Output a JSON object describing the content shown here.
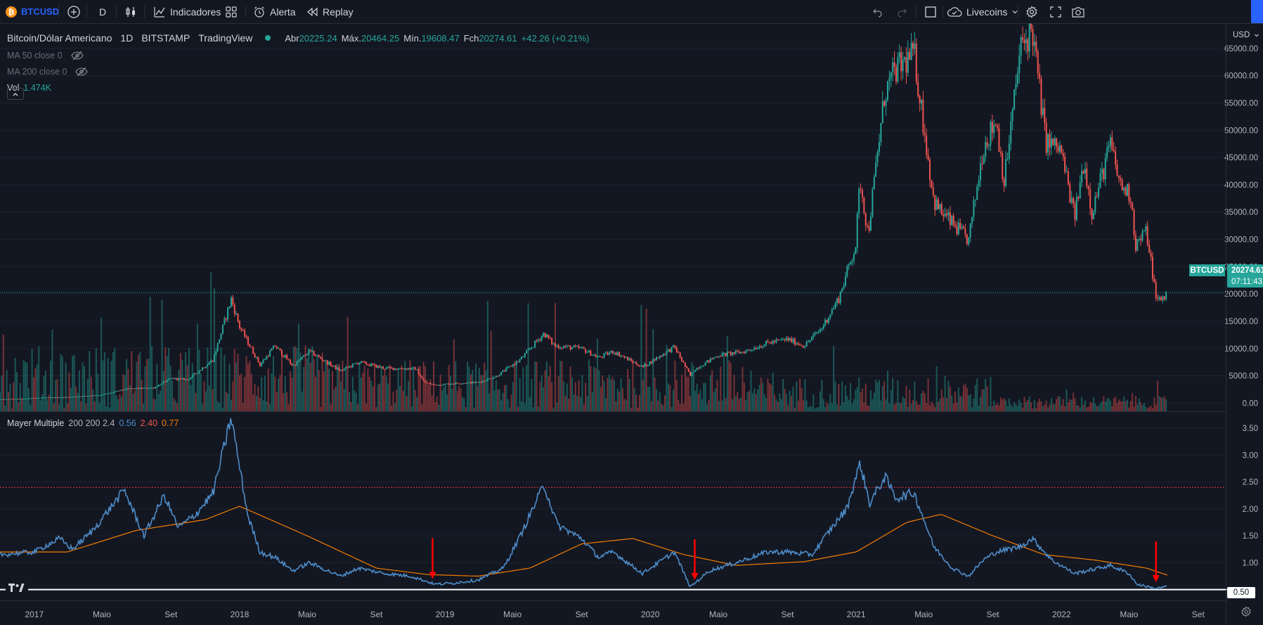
{
  "toolbar": {
    "symbol": "BTCUSD",
    "interval": "D",
    "indicators_label": "Indicadores",
    "alert_label": "Alerta",
    "replay_label": "Replay",
    "layout_name": "Livecoins",
    "symbol_icon": "bitcoin-icon",
    "add_symbol_icon": "plus-circle-icon",
    "chart_type_icon": "candles-icon",
    "indicators_icon": "indicators-icon",
    "templates_icon": "grid-icon",
    "alert_icon": "alarm-clock-icon",
    "replay_icon": "rewind-icon",
    "undo_icon": "undo-icon",
    "redo_icon": "redo-icon",
    "fullscreen_window_icon": "square-icon",
    "cloud_icon": "cloud-check-icon",
    "settings_icon": "gear-icon",
    "fullscreen_icon": "fullscreen-icon",
    "snapshot_icon": "camera-icon"
  },
  "legend": {
    "title": "Bitcoin/Dólar Americano",
    "interval": "1D",
    "exchange": "BITSTAMP",
    "source": "TradingView",
    "open_label": "Abr",
    "open": "20225.24",
    "high_label": "Máx.",
    "high": "20464.25",
    "low_label": "Mín.",
    "low": "19608.47",
    "close_label": "Fch",
    "close": "20274.61",
    "change": "+42.26 (+0.21%)",
    "ma50": "MA 50 close 0",
    "ma200": "MA 200 close 0",
    "vol_label": "Vol",
    "vol_value": "1.474K"
  },
  "price_axis": {
    "currency": "USD",
    "last_price_tag": "20274.61",
    "countdown": "07:11:43",
    "symbol_tag": "BTCUSD"
  },
  "indicator": {
    "name": "Mayer Multiple",
    "params": "200 200 2.4",
    "value_mm": "0.56",
    "value_upper": "2.40",
    "value_ma": "0.77",
    "axis_tag": "0.50"
  },
  "colors": {
    "background": "#131722",
    "up": "#26a69a",
    "down": "#ef5350",
    "mayer_line": "#4f8dc9",
    "mayer_ma": "#f57c00",
    "threshold_line": "#f23645",
    "low_line": "#ffffff",
    "arrow": "#ff0000"
  },
  "chart_data": [
    {
      "type": "candlestick",
      "title": "Bitcoin/Dólar Americano",
      "ylabel": "USD",
      "ylim": [
        -1500,
        69500
      ],
      "y_ticks": [
        "65000.00",
        "60000.00",
        "55000.00",
        "50000.00",
        "45000.00",
        "40000.00",
        "35000.00",
        "30000.00",
        "25000.00",
        "20000.00",
        "15000.00",
        "10000.00",
        "5000.00",
        "0.00"
      ],
      "x_ticks": [
        "2017",
        "Maio",
        "Set",
        "2018",
        "Maio",
        "Set",
        "2019",
        "Maio",
        "Set",
        "2020",
        "Maio",
        "Set",
        "2021",
        "Maio",
        "Set",
        "2022",
        "Maio",
        "Set"
      ],
      "last_price": 20274.61,
      "series": [
        {
          "name": "BTCUSD",
          "x": [
            "2016-11-01",
            "2016-12-15",
            "2017-01-01",
            "2017-03-01",
            "2017-05-01",
            "2017-06-15",
            "2017-08-01",
            "2017-09-01",
            "2017-10-01",
            "2017-11-15",
            "2017-12-17",
            "2018-01-01",
            "2018-02-06",
            "2018-03-05",
            "2018-04-06",
            "2018-05-05",
            "2018-06-29",
            "2018-08-01",
            "2018-09-15",
            "2018-11-10",
            "2018-11-25",
            "2018-12-15",
            "2019-01-15",
            "2019-03-01",
            "2019-04-02",
            "2019-05-15",
            "2019-06-26",
            "2019-07-15",
            "2019-09-01",
            "2019-10-01",
            "2019-10-27",
            "2019-12-18",
            "2020-02-13",
            "2020-03-12",
            "2020-03-20",
            "2020-05-01",
            "2020-06-15",
            "2020-07-27",
            "2020-09-01",
            "2020-10-01",
            "2020-11-01",
            "2020-12-01",
            "2020-12-31",
            "2021-01-08",
            "2021-01-22",
            "2021-02-21",
            "2021-03-13",
            "2021-04-14",
            "2021-05-19",
            "2021-06-01",
            "2021-07-20",
            "2021-08-15",
            "2021-09-07",
            "2021-09-21",
            "2021-10-20",
            "2021-11-10",
            "2021-12-04",
            "2021-12-31",
            "2022-01-24",
            "2022-02-10",
            "2022-02-24",
            "2022-03-29",
            "2022-04-15",
            "2022-05-05",
            "2022-05-12",
            "2022-06-01",
            "2022-06-14",
            "2022-06-18",
            "2022-07-01",
            "2022-07-08"
          ],
          "values": [
            700,
            780,
            960,
            1100,
            1500,
            2600,
            2800,
            4500,
            4300,
            8000,
            19100,
            14000,
            7000,
            10500,
            6800,
            9500,
            5900,
            7500,
            6400,
            6300,
            3800,
            3300,
            3600,
            3800,
            4900,
            8000,
            12800,
            10500,
            10000,
            8300,
            9500,
            6600,
            10300,
            5000,
            6200,
            8800,
            9400,
            11000,
            11700,
            10500,
            13800,
            19200,
            29000,
            41000,
            31000,
            57000,
            61000,
            64000,
            37000,
            35000,
            29800,
            47000,
            52000,
            40500,
            65000,
            68500,
            48000,
            46300,
            34000,
            44500,
            35000,
            47500,
            40000,
            38000,
            28900,
            31500,
            22500,
            18900,
            19300,
            20274
          ]
        }
      ]
    },
    {
      "type": "line",
      "title": "Mayer Multiple",
      "ylim": [
        0.3,
        3.8
      ],
      "y_ticks": [
        "3.50",
        "3.00",
        "2.50",
        "2.00",
        "1.50",
        "1.00",
        "0.50"
      ],
      "threshold": 2.4,
      "low_level": 0.5,
      "series": [
        {
          "name": "Mayer Multiple",
          "x": [
            "2016-11-01",
            "2017-01-01",
            "2017-02-15",
            "2017-03-10",
            "2017-04-15",
            "2017-06-10",
            "2017-07-15",
            "2017-08-20",
            "2017-09-14",
            "2017-10-15",
            "2017-11-15",
            "2017-12-17",
            "2018-01-15",
            "2018-02-06",
            "2018-03-05",
            "2018-04-06",
            "2018-05-05",
            "2018-06-29",
            "2018-08-01",
            "2018-09-15",
            "2018-11-01",
            "2018-12-15",
            "2019-01-15",
            "2019-03-01",
            "2019-04-15",
            "2019-05-15",
            "2019-06-26",
            "2019-07-20",
            "2019-09-01",
            "2019-10-01",
            "2019-10-27",
            "2019-12-18",
            "2020-02-13",
            "2020-03-12",
            "2020-04-15",
            "2020-06-01",
            "2020-07-27",
            "2020-09-01",
            "2020-10-15",
            "2020-11-15",
            "2020-12-15",
            "2021-01-08",
            "2021-01-25",
            "2021-02-21",
            "2021-03-13",
            "2021-04-14",
            "2021-05-19",
            "2021-06-21",
            "2021-07-20",
            "2021-08-15",
            "2021-09-07",
            "2021-10-20",
            "2021-11-10",
            "2021-12-15",
            "2022-01-24",
            "2022-03-29",
            "2022-05-01",
            "2022-05-15",
            "2022-06-18",
            "2022-07-08"
          ],
          "values": [
            1.15,
            1.2,
            1.45,
            1.25,
            1.6,
            2.35,
            1.5,
            2.25,
            1.65,
            1.9,
            2.3,
            3.7,
            1.9,
            1.2,
            1.1,
            0.85,
            1.0,
            0.75,
            0.9,
            0.8,
            0.75,
            0.6,
            0.62,
            0.68,
            0.9,
            1.5,
            2.45,
            1.7,
            1.45,
            1.1,
            1.2,
            0.8,
            1.2,
            0.55,
            0.85,
            1.0,
            1.2,
            1.2,
            1.15,
            1.6,
            2.0,
            2.85,
            2.1,
            2.6,
            2.2,
            2.3,
            1.3,
            0.9,
            0.75,
            1.05,
            1.2,
            1.3,
            1.45,
            1.05,
            0.8,
            0.95,
            0.8,
            0.6,
            0.52,
            0.56
          ]
        },
        {
          "name": "MA",
          "x": [
            "2016-11-01",
            "2017-03-01",
            "2017-07-01",
            "2017-11-01",
            "2018-01-01",
            "2018-05-01",
            "2018-09-01",
            "2018-12-01",
            "2019-03-01",
            "2019-06-01",
            "2019-09-01",
            "2019-12-01",
            "2020-03-01",
            "2020-06-01",
            "2020-10-01",
            "2021-01-01",
            "2021-04-01",
            "2021-06-01",
            "2021-09-01",
            "2021-12-01",
            "2022-03-01",
            "2022-06-01",
            "2022-07-08"
          ],
          "values": [
            1.2,
            1.2,
            1.6,
            1.8,
            2.05,
            1.5,
            0.9,
            0.78,
            0.75,
            0.9,
            1.35,
            1.45,
            1.15,
            0.95,
            1.02,
            1.2,
            1.75,
            1.9,
            1.5,
            1.15,
            1.05,
            0.9,
            0.77
          ]
        }
      ]
    }
  ]
}
